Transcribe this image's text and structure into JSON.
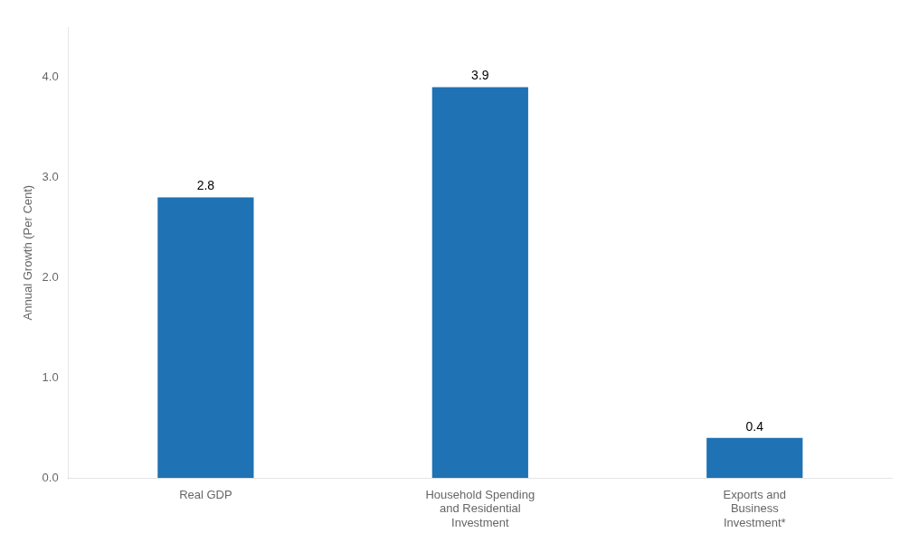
{
  "chart_data": {
    "type": "bar",
    "categories": [
      "Real GDP",
      "Household Spending\nand Residential\nInvestment",
      "Exports and\nBusiness\nInvestment*"
    ],
    "values": [
      2.8,
      3.9,
      0.4
    ],
    "color": "#1F72B4",
    "ylabel": "Annual Growth (Per Cent)",
    "ylim": [
      0,
      4.5
    ],
    "yticks": [
      {
        "value": 0.0,
        "label": "0.0"
      },
      {
        "value": 1.0,
        "label": "1.0"
      },
      {
        "value": 2.0,
        "label": "2.0"
      },
      {
        "value": 3.0,
        "label": "3.0"
      },
      {
        "value": 4.0,
        "label": "4.0"
      }
    ],
    "data_labels": true,
    "grid": false
  }
}
